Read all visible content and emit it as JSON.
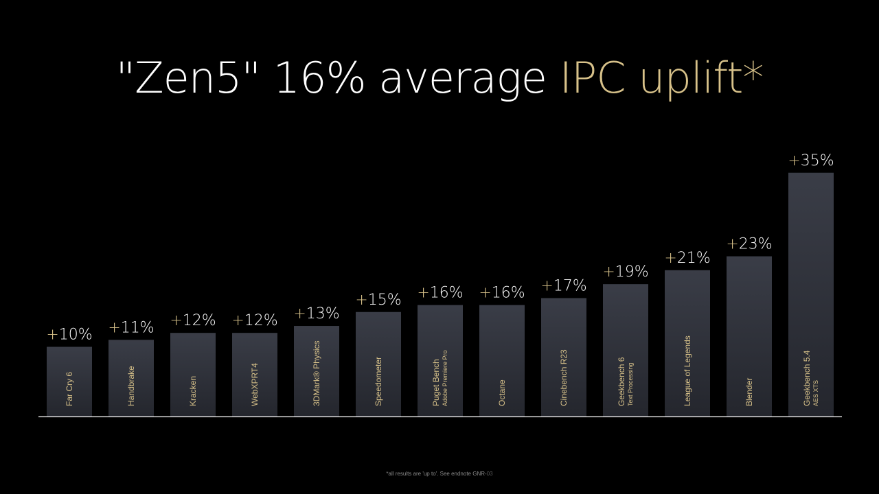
{
  "title": {
    "main": "\"Zen5\" 16% average ",
    "highlight": "IPC uplift*"
  },
  "footnote": {
    "text": "*all results are 'up to'. See endnote GNR-",
    "code": "03"
  },
  "colors": {
    "background": "#000000",
    "bar_top": "#3a3d47",
    "bar_bottom": "#24262d",
    "accent_gold": "#d8c28a",
    "label_text": "#ffffff",
    "category_text": "#d8c28a",
    "baseline": "#ffffff"
  },
  "chart_data": {
    "type": "bar",
    "title": "\"Zen5\" 16% average IPC uplift*",
    "xlabel": "",
    "ylabel": "",
    "ylim": [
      0,
      40
    ],
    "grid": false,
    "legend": "none",
    "categories": [
      {
        "line1": "Far Cry 6",
        "line2": ""
      },
      {
        "line1": "Handbrake",
        "line2": ""
      },
      {
        "line1": "Kracken",
        "line2": ""
      },
      {
        "line1": "WebXPRT4",
        "line2": ""
      },
      {
        "line1": "3DMark® Physics",
        "line2": ""
      },
      {
        "line1": "Speedometer",
        "line2": ""
      },
      {
        "line1": "Puget Bench",
        "line2": "Adobe Premiere Pro"
      },
      {
        "line1": "Octane",
        "line2": ""
      },
      {
        "line1": "Cinebench R23",
        "line2": ""
      },
      {
        "line1": "Geekbench 6",
        "line2": "Text Processing"
      },
      {
        "line1": "League of Legends",
        "line2": ""
      },
      {
        "line1": "Blender",
        "line2": ""
      },
      {
        "line1": "Geekbench 5.4",
        "line2": "AES XTS"
      }
    ],
    "values": [
      10,
      11,
      12,
      12,
      13,
      15,
      16,
      16,
      17,
      19,
      21,
      23,
      35
    ],
    "data_labels": [
      "+10%",
      "+11%",
      "+12%",
      "+12%",
      "+13%",
      "+15%",
      "+16%",
      "+16%",
      "+17%",
      "+19%",
      "+21%",
      "+23%",
      "+35%"
    ]
  }
}
